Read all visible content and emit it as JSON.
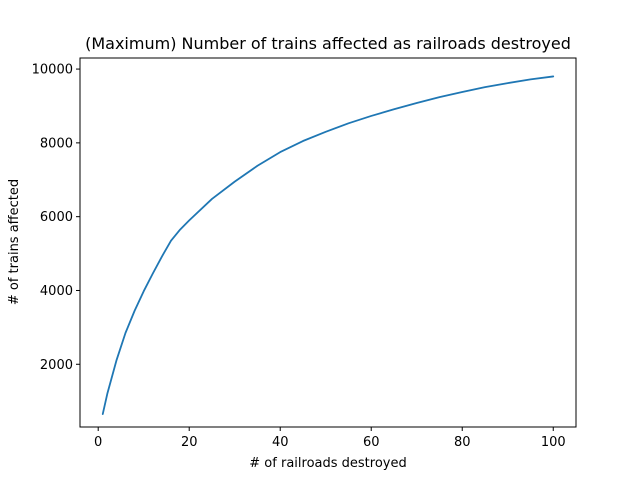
{
  "chart_data": {
    "type": "line",
    "title": "(Maximum) Number of trains affected as railroads destroyed",
    "xlabel": "# of railroads destroyed",
    "ylabel": "# of trains affected",
    "xlim": [
      -4,
      105
    ],
    "ylim": [
      300,
      10300
    ],
    "xticks": [
      0,
      20,
      40,
      60,
      80,
      100
    ],
    "yticks": [
      2000,
      4000,
      6000,
      8000,
      10000
    ],
    "grid": false,
    "line_color": "#1f77b4",
    "series": [
      {
        "x": [
          1,
          2,
          4,
          6,
          8,
          10,
          12,
          14,
          16,
          18,
          20,
          25,
          30,
          35,
          40,
          45,
          50,
          55,
          60,
          65,
          70,
          75,
          80,
          85,
          90,
          95,
          100
        ],
        "values": [
          650,
          1200,
          2100,
          2850,
          3450,
          3980,
          4460,
          4920,
          5350,
          5650,
          5900,
          6480,
          6950,
          7380,
          7750,
          8050,
          8300,
          8530,
          8730,
          8910,
          9080,
          9240,
          9380,
          9510,
          9620,
          9720,
          9800
        ]
      }
    ]
  }
}
